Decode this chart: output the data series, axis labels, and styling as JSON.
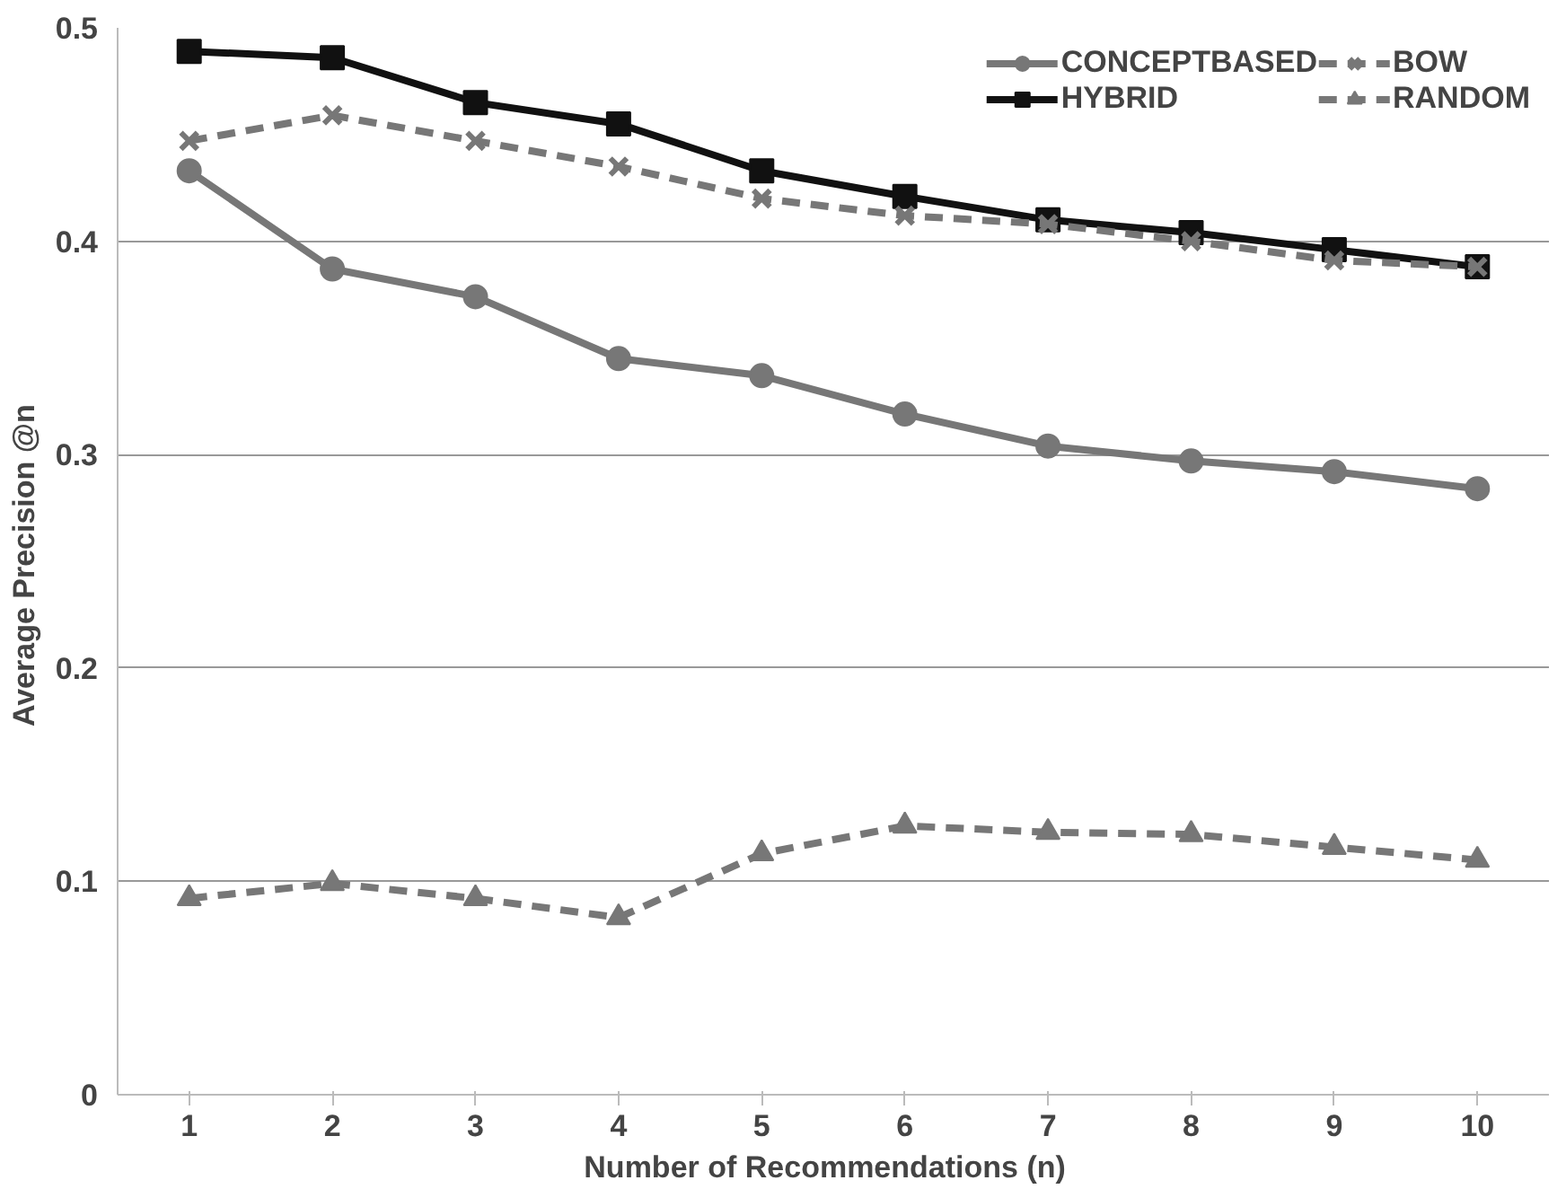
{
  "chart_data": {
    "type": "line",
    "xlabel": "Number  of  Recommendations (n)",
    "ylabel": "Average  Precision @n",
    "categories": [
      "1",
      "2",
      "3",
      "4",
      "5",
      "6",
      "7",
      "8",
      "9",
      "10"
    ],
    "ylim": [
      0,
      0.5
    ],
    "yticks": [
      0,
      0.1,
      0.2,
      0.3,
      0.4,
      0.5
    ],
    "grid": "y",
    "legend": "top right",
    "series": [
      {
        "name": "CONCEPTBASED",
        "color": "#777777",
        "marker": "circle",
        "line_style": "solid",
        "values": [
          0.433,
          0.387,
          0.374,
          0.345,
          0.337,
          0.319,
          0.304,
          0.297,
          0.292,
          0.284
        ]
      },
      {
        "name": "HYBRID",
        "color": "#111111",
        "marker": "square",
        "line_style": "solid",
        "values": [
          0.489,
          0.486,
          0.465,
          0.455,
          0.433,
          0.421,
          0.41,
          0.404,
          0.396,
          0.388
        ]
      },
      {
        "name": "BOW",
        "color": "#777777",
        "marker": "cross",
        "line_style": "dashed",
        "values": [
          0.447,
          0.459,
          0.447,
          0.435,
          0.42,
          0.412,
          0.408,
          0.4,
          0.391,
          0.388
        ]
      },
      {
        "name": "RANDOM",
        "color": "#777777",
        "marker": "triangle",
        "line_style": "dashed",
        "values": [
          0.092,
          0.099,
          0.092,
          0.083,
          0.113,
          0.126,
          0.123,
          0.122,
          0.116,
          0.11
        ]
      }
    ]
  }
}
